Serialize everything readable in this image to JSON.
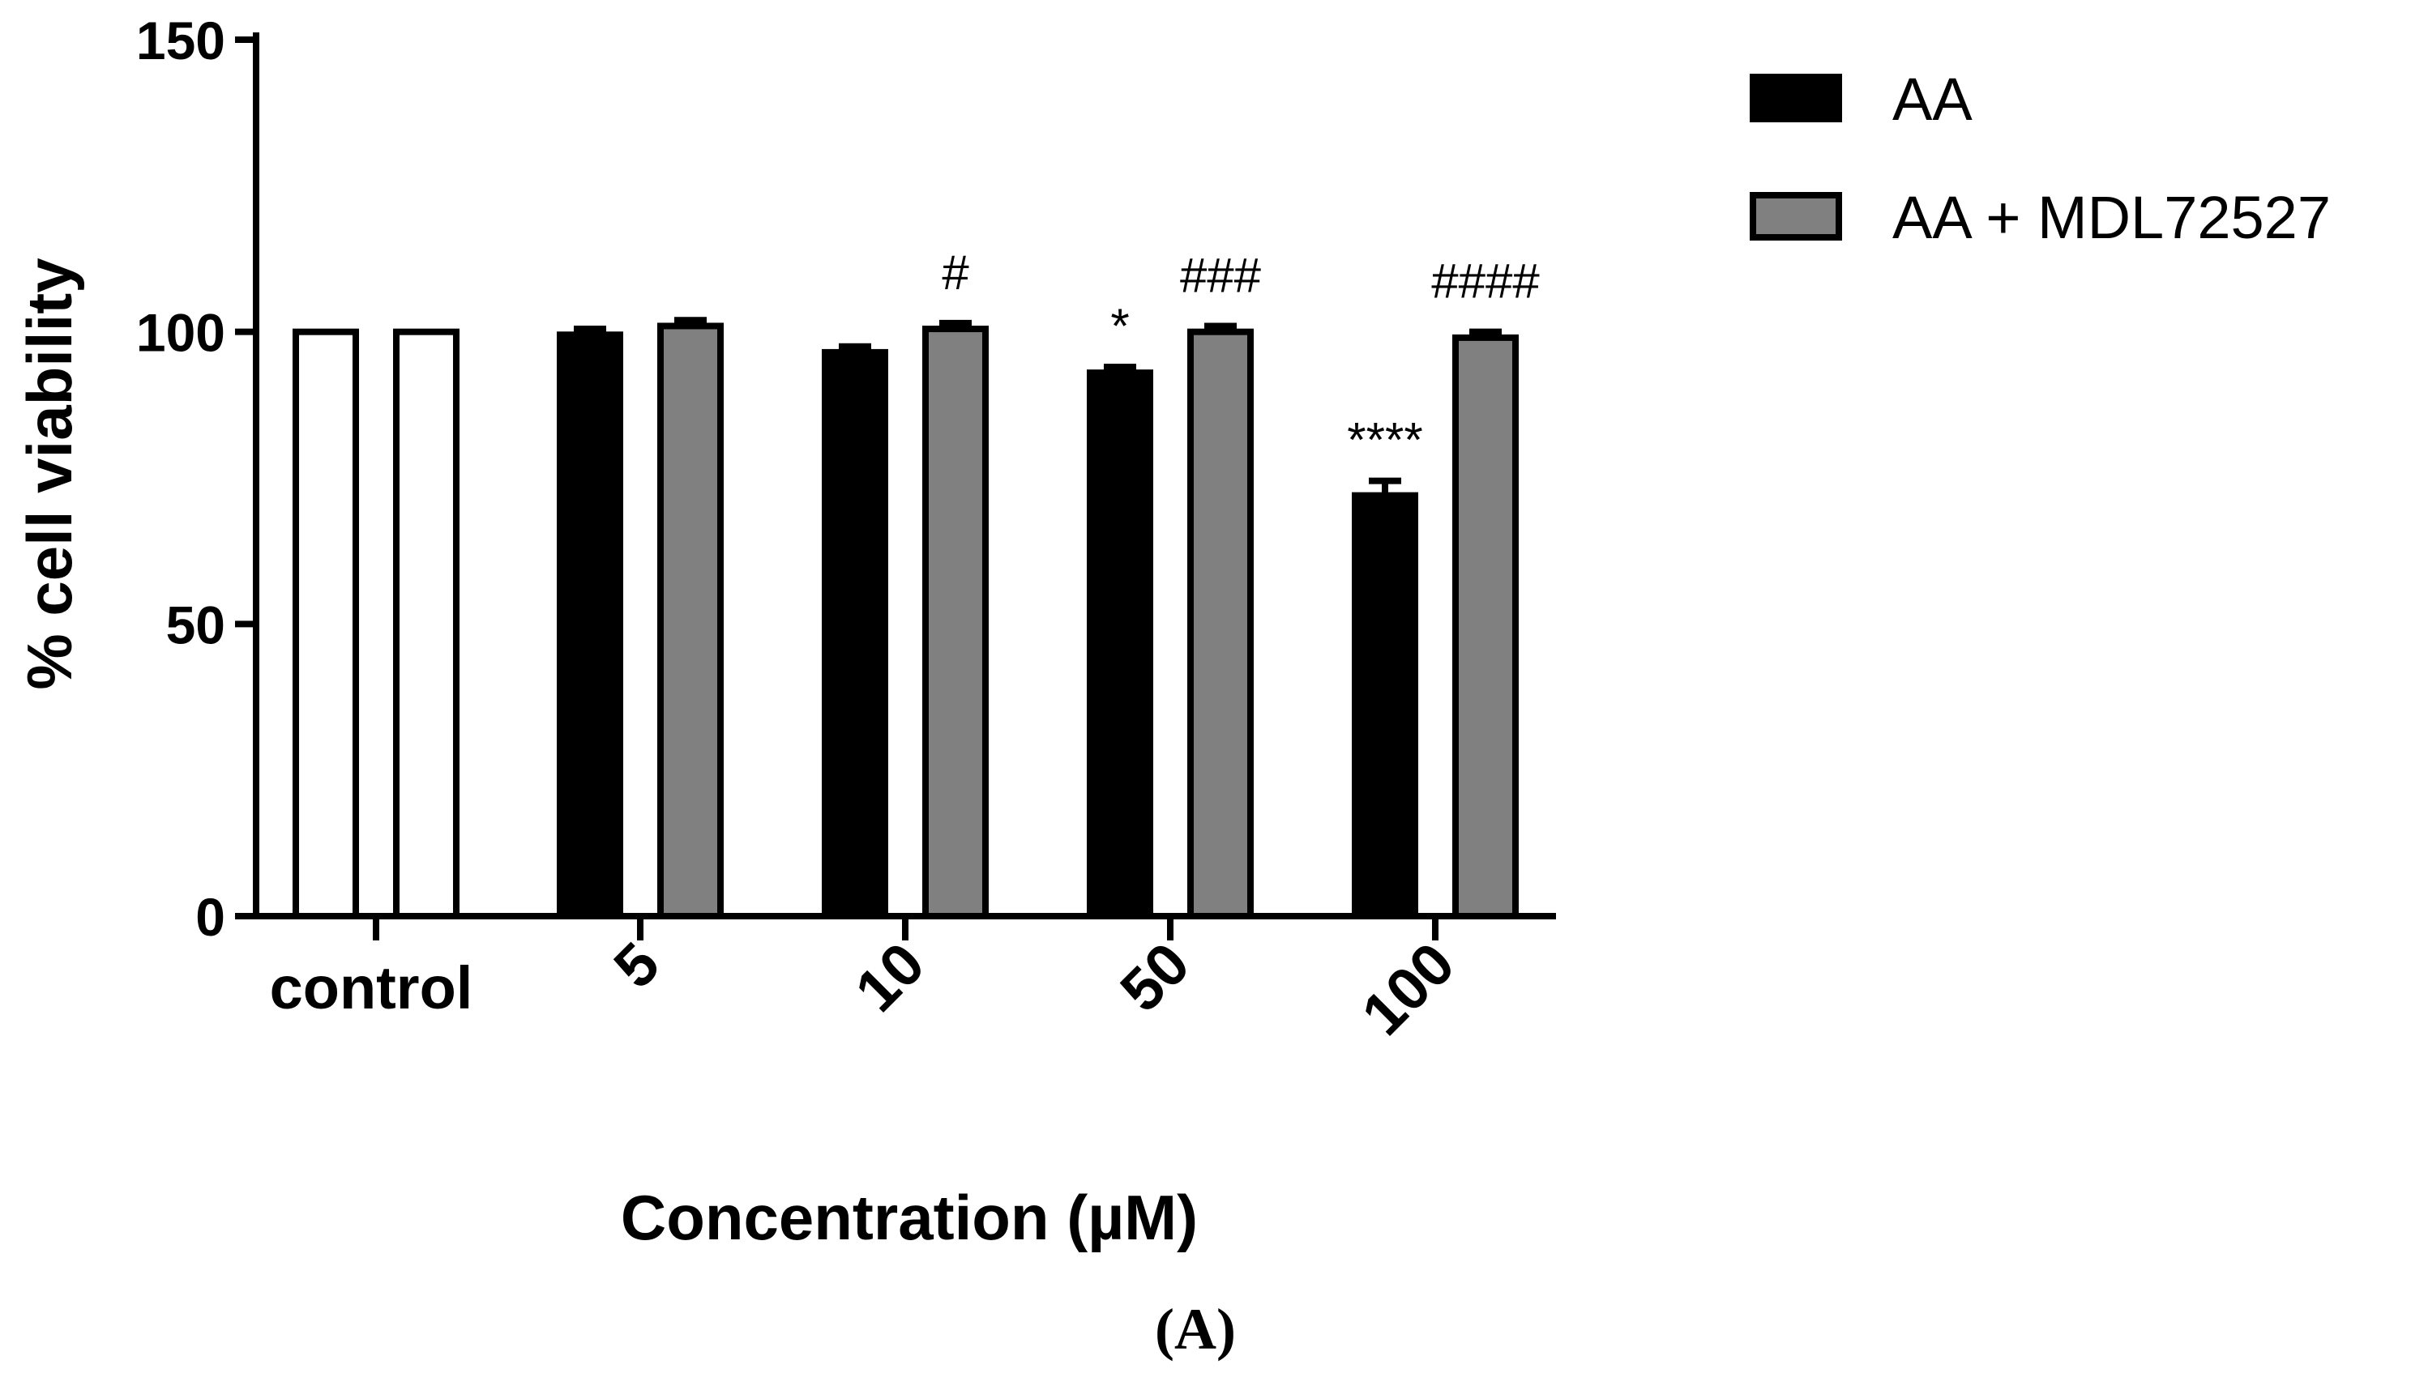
{
  "chart_data": {
    "type": "bar",
    "categories": [
      "control",
      "5",
      "10",
      "50",
      "100"
    ],
    "ylabel": "% cell viability",
    "xlabel": "Concentration (µM)",
    "ylim": [
      0,
      150
    ],
    "yticks": [
      0,
      50,
      100,
      150
    ],
    "panel_label": "(A)",
    "control_values": [
      100,
      100
    ],
    "control_color": "#ffffff",
    "series": [
      {
        "name": "AA",
        "color": "#000000",
        "values": [
          null,
          99.5,
          96.5,
          93,
          72
        ],
        "errors": [
          null,
          1,
          1,
          1,
          2.5
        ],
        "annotations": [
          "",
          "",
          "",
          "*",
          "****"
        ]
      },
      {
        "name": "AA + MDL72527",
        "color": "#808080",
        "values": [
          null,
          101,
          100.5,
          100,
          99
        ],
        "errors": [
          null,
          1,
          1,
          1,
          1
        ],
        "annotations": [
          "",
          "",
          "#",
          "###",
          "####"
        ]
      }
    ],
    "legend_position": "top-right",
    "grid": false
  }
}
